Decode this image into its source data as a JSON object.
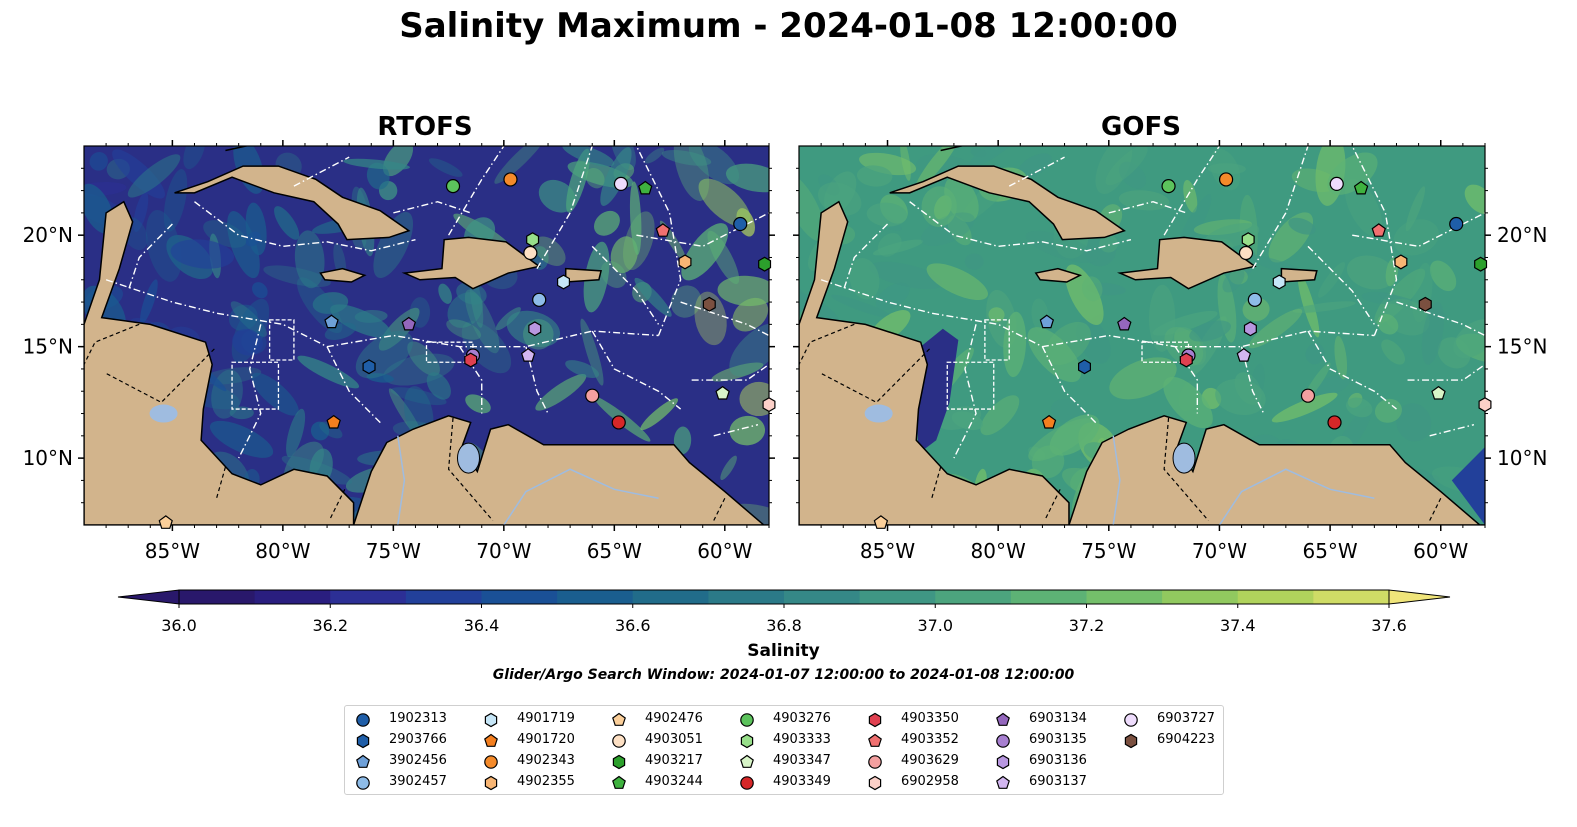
{
  "title": "Salinity Maximum - 2024-01-08 12:00:00",
  "panels": [
    {
      "title": "RTOFS"
    },
    {
      "title": "GOFS"
    }
  ],
  "map": {
    "lon_range": [
      -89,
      -58
    ],
    "lat_range": [
      7,
      24
    ],
    "lon_ticks": [
      "85°W",
      "80°W",
      "75°W",
      "70°W",
      "65°W",
      "60°W"
    ],
    "lat_ticks": [
      "20°N",
      "15°N",
      "10°N"
    ],
    "colors": {
      "land": "#d2b48c",
      "water_lake": "#9fbce0",
      "rtofs_base": "#2a2f86",
      "gofs_base": "#3f9a80"
    }
  },
  "colorbar": {
    "label": "Salinity",
    "ticks": [
      "36.0",
      "36.2",
      "36.4",
      "36.6",
      "36.8",
      "37.0",
      "37.2",
      "37.4",
      "37.6"
    ],
    "range": [
      36.0,
      37.6
    ],
    "colormap": "haline",
    "extend": "both"
  },
  "search_window": "Glider/Argo Search Window: 2024-01-07 12:00:00 to 2024-01-08 12:00:00",
  "legend": {
    "items": [
      {
        "id": "1902313",
        "marker": "circle",
        "color": "#1f5ea8"
      },
      {
        "id": "2903766",
        "marker": "hexagon",
        "color": "#1f5ea8"
      },
      {
        "id": "3902456",
        "marker": "pentagon",
        "color": "#6ea0d8"
      },
      {
        "id": "3902457",
        "marker": "circle",
        "color": "#8ebce8"
      },
      {
        "id": "4901719",
        "marker": "hexagon",
        "color": "#c6e6f7"
      },
      {
        "id": "4901720",
        "marker": "pentagon",
        "color": "#f47f1f"
      },
      {
        "id": "4902343",
        "marker": "circle",
        "color": "#f48a2a"
      },
      {
        "id": "4902355",
        "marker": "hexagon",
        "color": "#f7b574"
      },
      {
        "id": "4902476",
        "marker": "pentagon",
        "color": "#fbcf9a"
      },
      {
        "id": "4903051",
        "marker": "circle",
        "color": "#fde0c4"
      },
      {
        "id": "4903217",
        "marker": "hexagon",
        "color": "#2ca02c"
      },
      {
        "id": "4903244",
        "marker": "pentagon",
        "color": "#3fb23f"
      },
      {
        "id": "4903276",
        "marker": "circle",
        "color": "#5cc35c"
      },
      {
        "id": "4903333",
        "marker": "hexagon",
        "color": "#98df8a"
      },
      {
        "id": "4903347",
        "marker": "pentagon",
        "color": "#d8f5c8"
      },
      {
        "id": "4903349",
        "marker": "circle",
        "color": "#d62728"
      },
      {
        "id": "4903350",
        "marker": "hexagon",
        "color": "#e04050"
      },
      {
        "id": "4903352",
        "marker": "pentagon",
        "color": "#f07070"
      },
      {
        "id": "4903629",
        "marker": "circle",
        "color": "#f4a0a0"
      },
      {
        "id": "6902958",
        "marker": "hexagon",
        "color": "#fcd0c8"
      },
      {
        "id": "6903134",
        "marker": "pentagon",
        "color": "#9467bd"
      },
      {
        "id": "6903135",
        "marker": "circle",
        "color": "#a77fd0"
      },
      {
        "id": "6903136",
        "marker": "hexagon",
        "color": "#b897e0"
      },
      {
        "id": "6903137",
        "marker": "pentagon",
        "color": "#d2b6f0"
      },
      {
        "id": "6903727",
        "marker": "circle",
        "color": "#eedcfc"
      },
      {
        "id": "6904223",
        "marker": "hexagon",
        "color": "#7b5040"
      }
    ]
  },
  "floats_on_map": [
    {
      "id": "4903276",
      "lon": -72.3,
      "lat": 22.2
    },
    {
      "id": "4902343",
      "lon": -69.7,
      "lat": 22.5
    },
    {
      "id": "6903727",
      "lon": -64.7,
      "lat": 22.3
    },
    {
      "id": "4903244",
      "lon": -63.6,
      "lat": 22.1
    },
    {
      "id": "1902313",
      "lon": -59.3,
      "lat": 20.5
    },
    {
      "id": "4903352",
      "lon": -62.8,
      "lat": 20.2
    },
    {
      "id": "4903333",
      "lon": -68.7,
      "lat": 19.8
    },
    {
      "id": "4903051",
      "lon": -68.8,
      "lat": 19.2
    },
    {
      "id": "4902355",
      "lon": -61.8,
      "lat": 18.8
    },
    {
      "id": "4903217",
      "lon": -58.2,
      "lat": 18.7
    },
    {
      "id": "4901719",
      "lon": -67.3,
      "lat": 17.9
    },
    {
      "id": "3902457",
      "lon": -68.4,
      "lat": 17.1
    },
    {
      "id": "6904223",
      "lon": -60.7,
      "lat": 16.9
    },
    {
      "id": "3902456",
      "lon": -77.8,
      "lat": 16.1
    },
    {
      "id": "6903134",
      "lon": -74.3,
      "lat": 16.0
    },
    {
      "id": "6903136",
      "lon": -68.6,
      "lat": 15.8
    },
    {
      "id": "6903135",
      "lon": -71.4,
      "lat": 14.6
    },
    {
      "id": "4903350",
      "lon": -71.5,
      "lat": 14.4
    },
    {
      "id": "6903137",
      "lon": -68.9,
      "lat": 14.6
    },
    {
      "id": "2903766",
      "lon": -76.1,
      "lat": 14.1
    },
    {
      "id": "4903629",
      "lon": -66.0,
      "lat": 12.8
    },
    {
      "id": "4903347",
      "lon": -60.1,
      "lat": 12.9
    },
    {
      "id": "6902958",
      "lon": -58.0,
      "lat": 12.4
    },
    {
      "id": "4901720",
      "lon": -77.7,
      "lat": 11.6
    },
    {
      "id": "4903349",
      "lon": -64.8,
      "lat": 11.6
    },
    {
      "id": "4902476",
      "lon": -85.3,
      "lat": 7.1
    }
  ]
}
